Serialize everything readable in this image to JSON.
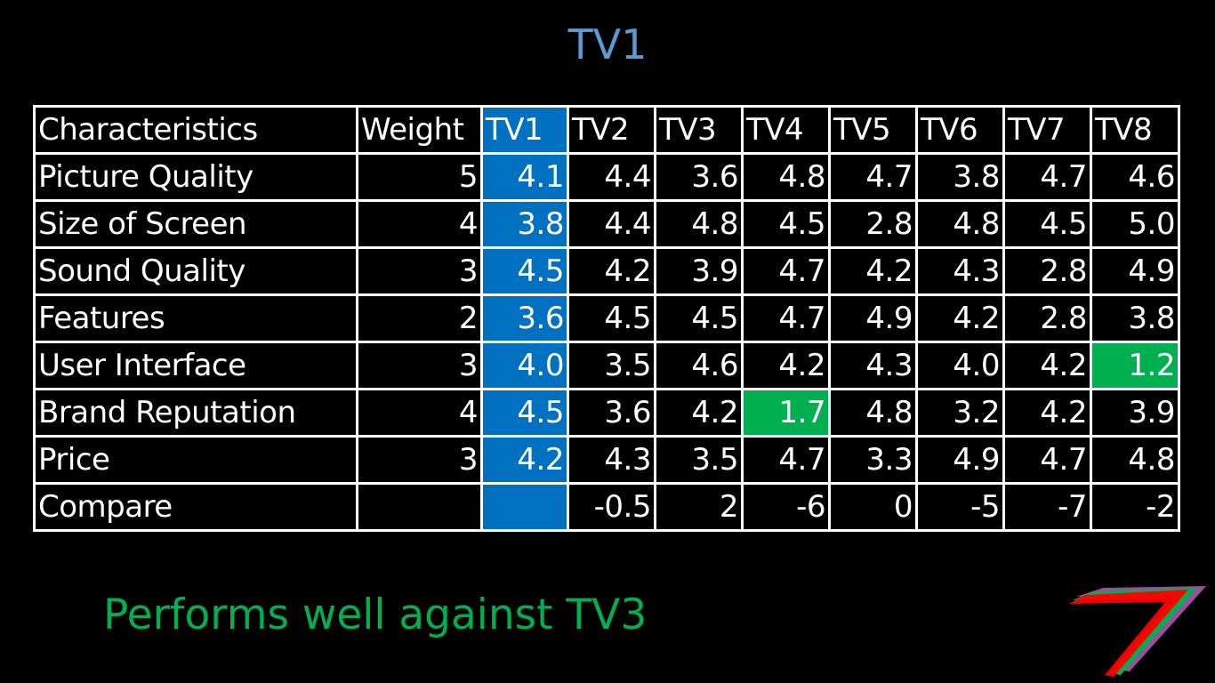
{
  "title": "TV1",
  "table": {
    "headers": [
      "Characteristics",
      "Weight",
      "TV1",
      "TV2",
      "TV3",
      "TV4",
      "TV5",
      "TV6",
      "TV7",
      "TV8"
    ],
    "rows": [
      {
        "name": "Picture Quality",
        "weight": "5",
        "tv1": "4.1",
        "cells": [
          {
            "v": "4.4",
            "c": "yellow"
          },
          {
            "v": "3.6",
            "c": "green"
          },
          {
            "v": "4.8",
            "c": "red"
          },
          {
            "v": "4.7",
            "c": "red"
          },
          {
            "v": "3.8",
            "c": "yellow"
          },
          {
            "v": "4.7",
            "c": "red"
          },
          {
            "v": "4.6",
            "c": "red"
          }
        ]
      },
      {
        "name": "Size of Screen",
        "weight": "4",
        "tv1": "3.8",
        "cells": [
          {
            "v": "4.4",
            "c": "red"
          },
          {
            "v": "4.8",
            "c": "red"
          },
          {
            "v": "4.5",
            "c": "red"
          },
          {
            "v": "2.8",
            "c": "green"
          },
          {
            "v": "4.8",
            "c": "red"
          },
          {
            "v": "4.5",
            "c": "red"
          },
          {
            "v": "5.0",
            "c": "red"
          }
        ]
      },
      {
        "name": "Sound Quality",
        "weight": "3",
        "tv1": "4.5",
        "cells": [
          {
            "v": "4.2",
            "c": "yellow"
          },
          {
            "v": "3.9",
            "c": "green"
          },
          {
            "v": "4.7",
            "c": "yellow"
          },
          {
            "v": "4.2",
            "c": "yellow"
          },
          {
            "v": "4.3",
            "c": "yellow"
          },
          {
            "v": "2.8",
            "c": "green"
          },
          {
            "v": "4.9",
            "c": "yellow"
          }
        ]
      },
      {
        "name": "Features",
        "weight": "2",
        "tv1": "3.6",
        "cells": [
          {
            "v": "4.5",
            "c": "red"
          },
          {
            "v": "4.5",
            "c": "red"
          },
          {
            "v": "4.7",
            "c": "red"
          },
          {
            "v": "4.9",
            "c": "red"
          },
          {
            "v": "4.2",
            "c": "red"
          },
          {
            "v": "2.8",
            "c": "green"
          },
          {
            "v": "3.8",
            "c": "yellow"
          }
        ]
      },
      {
        "name": "User Interface",
        "weight": "3",
        "tv1": "4.0",
        "cells": [
          {
            "v": "3.5",
            "c": "green"
          },
          {
            "v": "4.6",
            "c": "red"
          },
          {
            "v": "4.2",
            "c": "yellow"
          },
          {
            "v": "4.3",
            "c": "yellow"
          },
          {
            "v": "4.0",
            "c": "yellow"
          },
          {
            "v": "4.2",
            "c": "yellow"
          },
          {
            "v": "1.2",
            "c": "highlight"
          }
        ]
      },
      {
        "name": "Brand Reputation",
        "weight": "4",
        "tv1": "4.5",
        "cells": [
          {
            "v": "3.6",
            "c": "green"
          },
          {
            "v": "4.2",
            "c": "yellow"
          },
          {
            "v": "1.7",
            "c": "highlight"
          },
          {
            "v": "4.8",
            "c": "yellow"
          },
          {
            "v": "3.2",
            "c": "green"
          },
          {
            "v": "4.2",
            "c": "yellow"
          },
          {
            "v": "3.9",
            "c": "green"
          }
        ]
      },
      {
        "name": "Price",
        "weight": "3",
        "tv1": "4.2",
        "cells": [
          {
            "v": "4.3",
            "c": "orange"
          },
          {
            "v": "3.5",
            "c": "green"
          },
          {
            "v": "4.7",
            "c": "red"
          },
          {
            "v": "3.3",
            "c": "green"
          },
          {
            "v": "4.9",
            "c": "red"
          },
          {
            "v": "4.7",
            "c": "red"
          },
          {
            "v": "4.8",
            "c": "red"
          }
        ]
      }
    ],
    "compare": {
      "label": "Compare",
      "weight": "",
      "tv1": "",
      "cells": [
        {
          "v": "-0.5",
          "c": "white"
        },
        {
          "v": "2",
          "c": "white"
        },
        {
          "v": "-6",
          "c": "white"
        },
        {
          "v": "0",
          "c": "white"
        },
        {
          "v": "-5",
          "c": "white"
        },
        {
          "v": "-7",
          "c": "white"
        },
        {
          "v": "-2",
          "c": "white"
        }
      ]
    }
  },
  "conclusion": "Performs well against TV3",
  "colors": {
    "title": "#5b9bd5",
    "selected_column": "#0070c0",
    "highlight_cell": "#00b050",
    "red": "#ff0000",
    "yellow": "#ffff00",
    "green": "#00b050",
    "orange": "#ffc000",
    "conclusion": "#00b050"
  },
  "logo": {
    "icon": "seven-logo-icon",
    "colors": [
      "#ff0000",
      "#00b050",
      "#9b4ea0"
    ]
  }
}
